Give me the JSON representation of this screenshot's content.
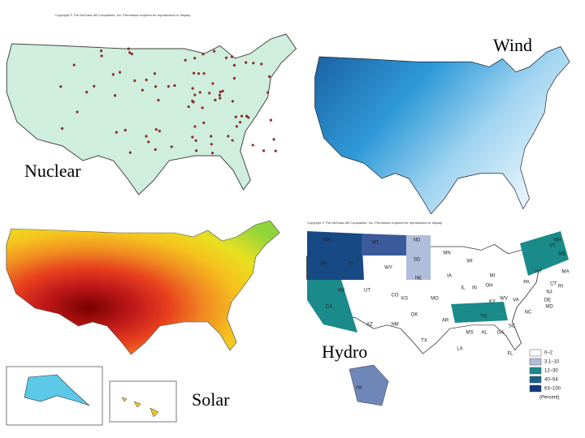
{
  "maps": {
    "nuclear": {
      "label": "Nuclear",
      "copyright": "Copyright © The McGraw-Hill Companies, Inc. Permission required for reproduction or display"
    },
    "wind": {
      "label": "Wind"
    },
    "solar": {
      "label": "Solar"
    },
    "hydro": {
      "label": "Hydro",
      "copyright": "Copyright © The McGraw-Hill Companies, Inc. Permission required for reproduction or display",
      "legend": [
        "0–2",
        "3.1–10",
        "12–30",
        "40–54",
        "63–100",
        "(Percent)"
      ],
      "states": [
        "WA",
        "MT",
        "ND",
        "OR",
        "ID",
        "SD",
        "MN",
        "WI",
        "MI",
        "NY",
        "VT",
        "NH",
        "ME",
        "MA",
        "WY",
        "NE",
        "IA",
        "PA",
        "CT",
        "RI",
        "NV",
        "UT",
        "CO",
        "KS",
        "MO",
        "IL",
        "IN",
        "OH",
        "WV",
        "VA",
        "NJ",
        "DE",
        "MD",
        "CA",
        "AZ",
        "NM",
        "OK",
        "AR",
        "TN",
        "KY",
        "NC",
        "SC",
        "TX",
        "LA",
        "MS",
        "AL",
        "GA",
        "FL",
        "AK"
      ]
    }
  }
}
